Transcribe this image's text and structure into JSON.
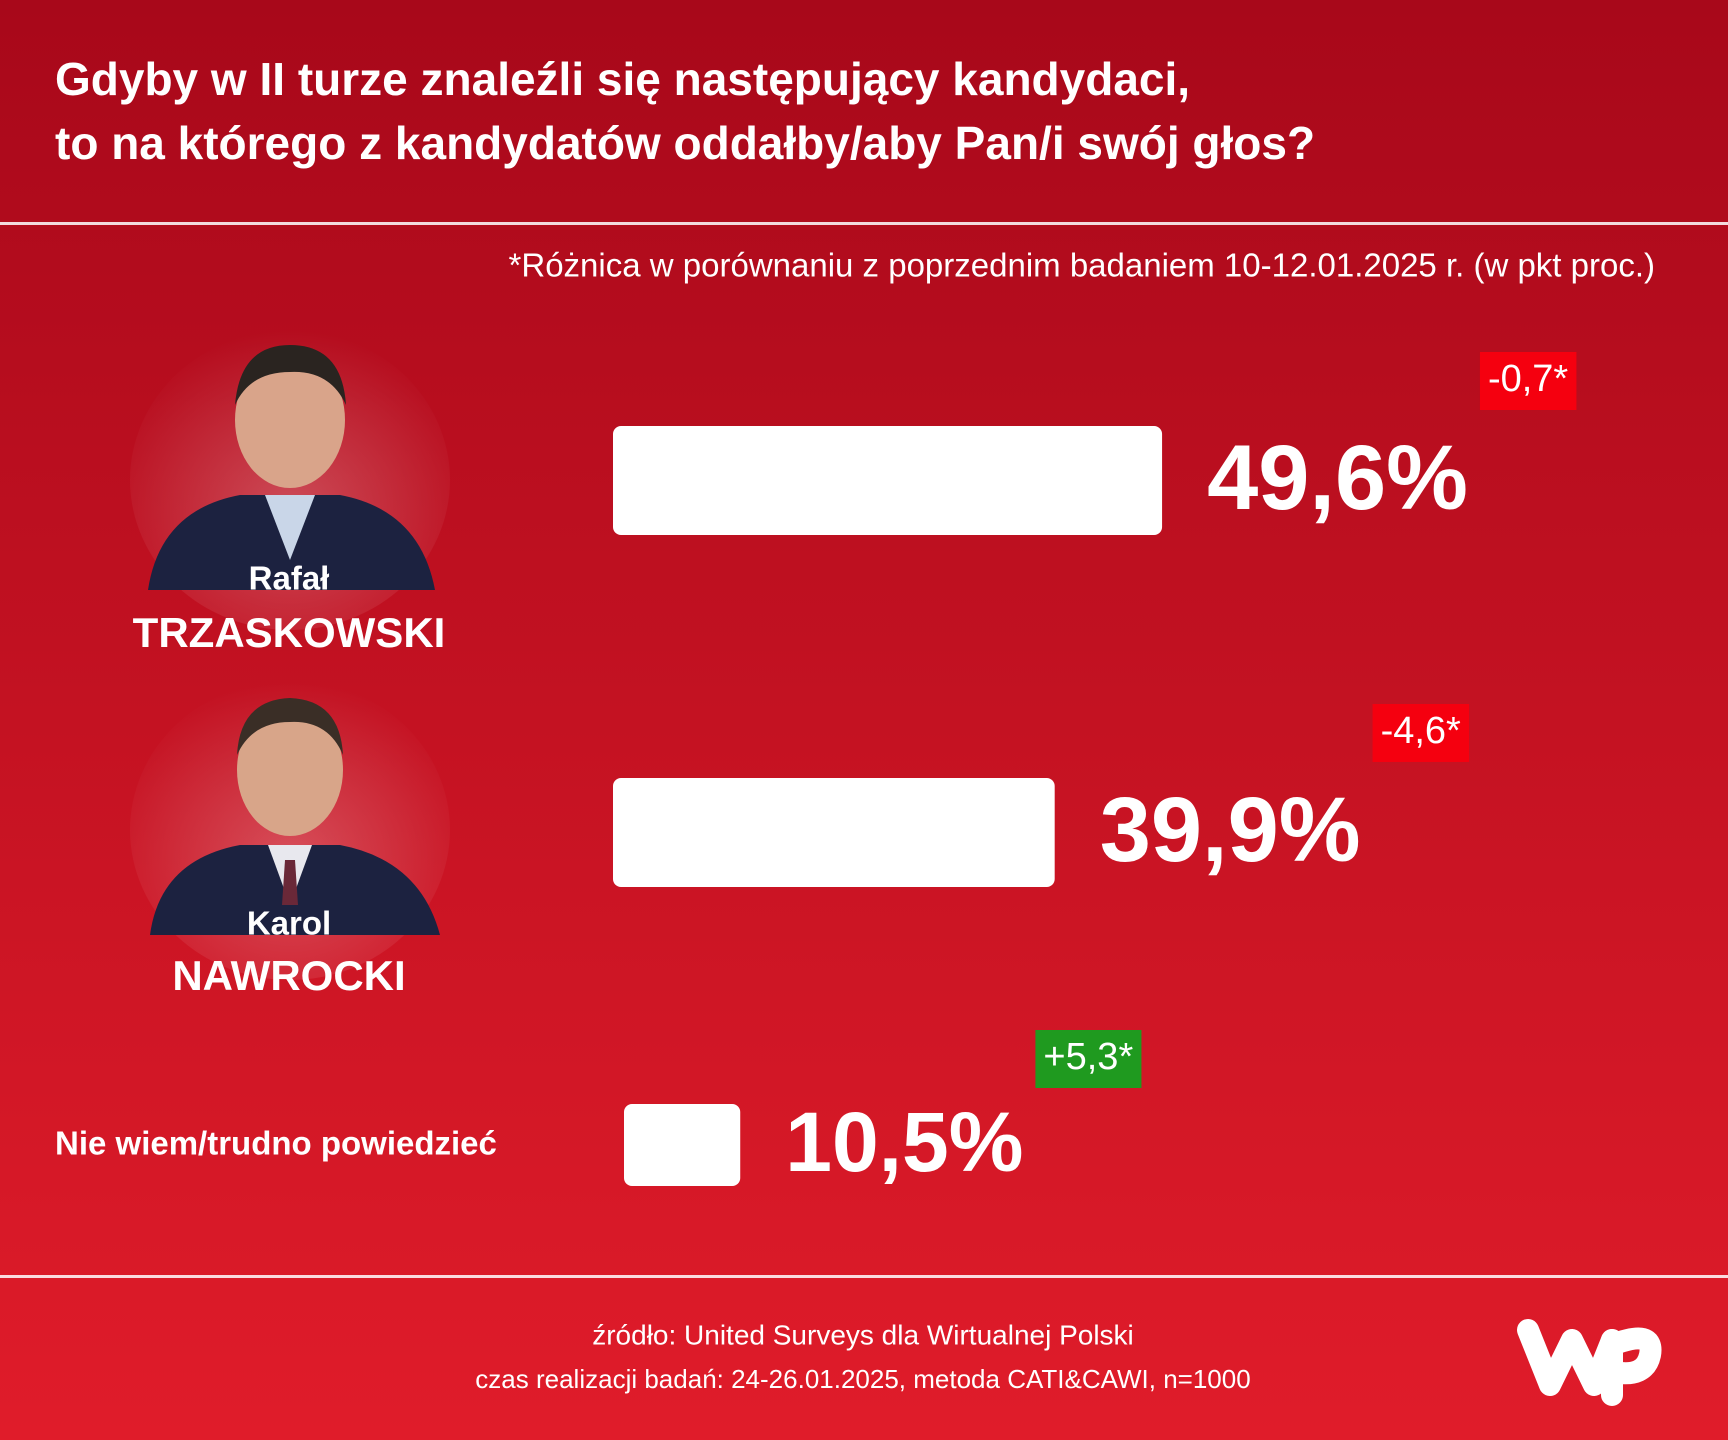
{
  "chart_data": {
    "type": "bar",
    "title": [
      "Gdyby w II turze znaleźli się następujący kandydaci,",
      "to na którego z kandydatów oddałby/aby Pan/i swój głos?"
    ],
    "note": "*Różnica w porównaniu z poprzednim badaniem 10-12.01.2025 r. (w pkt proc.)",
    "categories": [
      [
        "Rafał",
        "TRZASKOWSKI"
      ],
      [
        "Karol",
        "NAWROCKI"
      ],
      [
        "Nie wiem/trudno powiedzieć"
      ]
    ],
    "values": [
      49.6,
      39.9,
      10.5
    ],
    "value_labels": [
      "49,6%",
      "39,9%",
      "10,5%"
    ],
    "color": "#ffffff",
    "changes": [
      -0.7,
      -4.6,
      5.3
    ],
    "change_labels": [
      "-0,7*",
      "-4,6*",
      "+5,3*"
    ],
    "change_colors": [
      "#f5000f",
      "#f5000f",
      "#1f9a1f"
    ],
    "source": [
      "źródło: United Surveys dla Wirtualnej Polski",
      "czas realizacji badań: 24-26.01.2025, metoda CATI&CAWI, n=1000"
    ]
  }
}
